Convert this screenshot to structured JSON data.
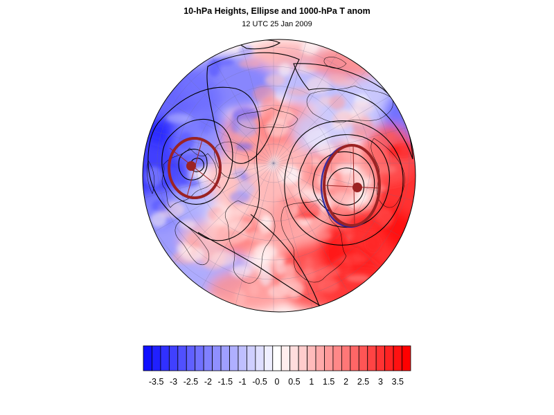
{
  "figure": {
    "title": "10-hPa Heights, Ellipse and 1000-hPa T anom",
    "subtitle": "12 UTC 25 Jan 2009"
  },
  "colors": {
    "cold": "#1010ff",
    "warm": "#ff0000",
    "neutral": "#ffffff",
    "ellipse": "#9b2323",
    "ellipse_outline": "#1a1aa0",
    "contour": "#000000"
  },
  "colorbar": {
    "ticks": [
      "-3.5",
      "-3",
      "-2.5",
      "-2",
      "-1.5",
      "-1",
      "-0.5",
      "0",
      "0.5",
      "1",
      "1.5",
      "2",
      "2.5",
      "3",
      "3.5"
    ],
    "min": -3.75,
    "max": 3.75,
    "step": 0.25
  },
  "map": {
    "projection": "orthographic-north-polar",
    "field": "1000-hPa temperature anomaly",
    "contours": "10-hPa geopotential height",
    "vortex_centers": [
      "west",
      "east"
    ]
  }
}
